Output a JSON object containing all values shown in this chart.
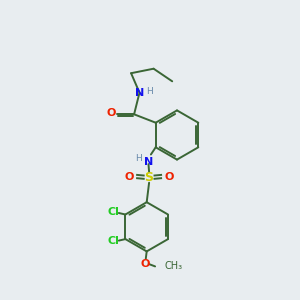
{
  "bg_color": "#e8edf0",
  "bond_color": "#3a6635",
  "N_color": "#1111ee",
  "O_color": "#ee2200",
  "S_color": "#cccc00",
  "Cl_color": "#22cc22",
  "H_color": "#6688aa",
  "lw": 1.4,
  "fs": 8.0,
  "fig_w": 3.0,
  "fig_h": 3.0,
  "dpi": 100,
  "xlim": [
    0,
    10
  ],
  "ylim": [
    0,
    10
  ]
}
